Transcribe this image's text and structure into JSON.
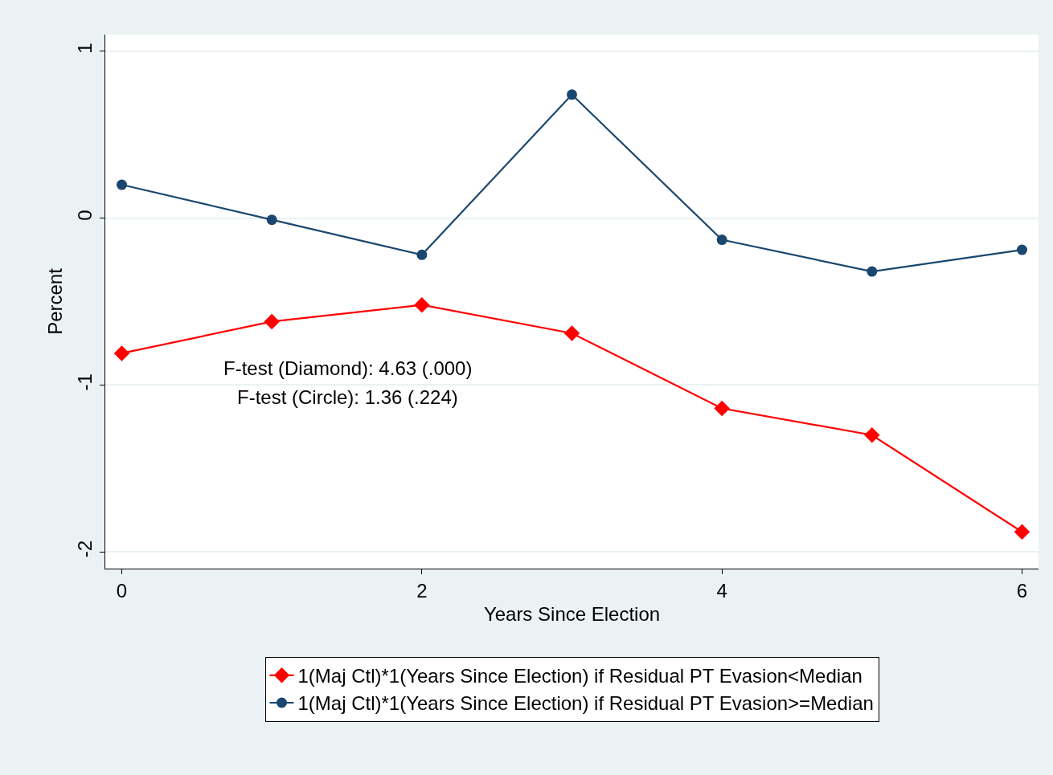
{
  "chart_data": {
    "type": "line",
    "xlabel": "Years Since Election",
    "ylabel": "Percent",
    "x": [
      0,
      1,
      2,
      3,
      4,
      5,
      6
    ],
    "series": [
      {
        "name": "1(Maj Ctl)*1(Years Since Election) if Residual PT Evasion<Median",
        "color": "#ff0000",
        "marker": "diamond",
        "values": [
          -0.81,
          -0.62,
          -0.52,
          -0.69,
          -1.14,
          -1.3,
          -1.88
        ]
      },
      {
        "name": "1(Maj Ctl)*1(Years Since Election) if Residual PT Evasion>=Median",
        "color": "#1a476f",
        "marker": "circle",
        "values": [
          0.2,
          -0.01,
          -0.22,
          0.74,
          -0.13,
          -0.32,
          -0.19
        ]
      }
    ],
    "xlim": [
      -0.11,
      6.11
    ],
    "ylim": [
      -2.1,
      1.1
    ],
    "xticks": [
      0,
      2,
      4,
      6
    ],
    "yticks": [
      -2,
      -1,
      0,
      1
    ],
    "grid": "y",
    "legend": "bottom",
    "line_style": "solid",
    "annotations": [
      "F-test (Diamond): 4.63 (.000)",
      "F-test (Circle): 1.36 (.224)"
    ]
  }
}
